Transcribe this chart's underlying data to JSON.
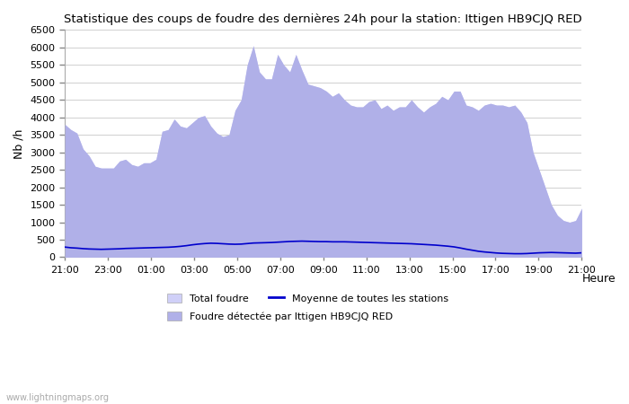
{
  "title": "Statistique des coups de foudre des dernières 24h pour la station: Ittigen HB9CJQ RED",
  "xlabel": "Heure",
  "ylabel": "Nb /h",
  "watermark": "www.lightningmaps.org",
  "ylim": [
    0,
    6500
  ],
  "yticks": [
    0,
    500,
    1000,
    1500,
    2000,
    2500,
    3000,
    3500,
    4000,
    4500,
    5000,
    5500,
    6000,
    6500
  ],
  "xtick_labels": [
    "21:00",
    "23:00",
    "01:00",
    "03:00",
    "05:00",
    "07:00",
    "09:00",
    "11:00",
    "13:00",
    "15:00",
    "17:00",
    "19:00",
    "21:00"
  ],
  "total_foudre_color": "#d0d0f8",
  "detected_color": "#b0b0e8",
  "line_color": "#0000cc",
  "background_color": "#ffffff",
  "grid_color": "#d0d0d0",
  "total_foudre": [
    3800,
    3650,
    3550,
    3100,
    2900,
    2600,
    2550,
    2550,
    2550,
    2750,
    2800,
    2650,
    2600,
    2700,
    2700,
    2800,
    3600,
    3650,
    3950,
    3750,
    3700,
    3850,
    4000,
    4050,
    3750,
    3550,
    3450,
    3500,
    4200,
    4500,
    5500,
    6050,
    5300,
    5100,
    5100,
    5800,
    5500,
    5300,
    5800,
    5350,
    4950,
    4900,
    4850,
    4750,
    4600,
    4700,
    4500,
    4350,
    4300,
    4300,
    4450,
    4500,
    4250,
    4350,
    4200,
    4300,
    4300,
    4500,
    4300,
    4150,
    4300,
    4400,
    4600,
    4500,
    4750,
    4750,
    4350,
    4300,
    4200,
    4350,
    4400,
    4350,
    4350,
    4300,
    4350,
    4150,
    3850,
    3000,
    2500,
    2000,
    1500,
    1200,
    1050,
    1000,
    1050,
    1400
  ],
  "detected": [
    3800,
    3650,
    3550,
    3100,
    2900,
    2600,
    2550,
    2550,
    2550,
    2750,
    2800,
    2650,
    2600,
    2700,
    2700,
    2800,
    3600,
    3650,
    3950,
    3750,
    3700,
    3850,
    4000,
    4050,
    3750,
    3550,
    3450,
    3500,
    4200,
    4500,
    5500,
    6050,
    5300,
    5100,
    5100,
    5800,
    5500,
    5300,
    5800,
    5350,
    4950,
    4900,
    4850,
    4750,
    4600,
    4700,
    4500,
    4350,
    4300,
    4300,
    4450,
    4500,
    4250,
    4350,
    4200,
    4300,
    4300,
    4500,
    4300,
    4150,
    4300,
    4400,
    4600,
    4500,
    4750,
    4750,
    4350,
    4300,
    4200,
    4350,
    4400,
    4350,
    4350,
    4300,
    4350,
    4150,
    3850,
    3000,
    2500,
    2000,
    1500,
    1200,
    1050,
    1000,
    1050,
    1400
  ],
  "moyenne": [
    290,
    270,
    260,
    245,
    235,
    230,
    225,
    230,
    235,
    240,
    250,
    255,
    260,
    265,
    270,
    275,
    280,
    285,
    295,
    310,
    330,
    355,
    375,
    390,
    400,
    395,
    385,
    375,
    370,
    375,
    390,
    405,
    410,
    415,
    420,
    430,
    440,
    450,
    455,
    460,
    455,
    450,
    445,
    445,
    440,
    440,
    440,
    435,
    430,
    425,
    420,
    415,
    410,
    405,
    400,
    395,
    390,
    385,
    375,
    365,
    355,
    345,
    330,
    315,
    295,
    265,
    230,
    200,
    170,
    150,
    135,
    120,
    110,
    105,
    100,
    100,
    105,
    115,
    125,
    130,
    135,
    130,
    125,
    120,
    115,
    125
  ],
  "n_points": 86
}
